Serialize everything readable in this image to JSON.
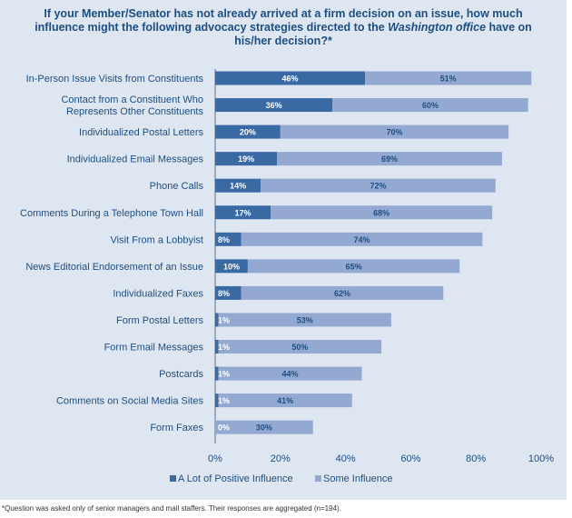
{
  "chart_data": {
    "type": "bar",
    "orientation": "horizontal",
    "stacked": true,
    "title_part1": "If your Member/Senator has not already arrived at a firm decision on an issue, how much influence might the following advocacy strategies directed to the",
    "title_emph": "Washington office",
    "title_part2": "have on his/her decision?*",
    "categories": [
      "In-Person Issue Visits from Constituents",
      "Contact from a Constituent Who Represents Other Constituents",
      "Individualized Postal Letters",
      "Individualized Email Messages",
      "Phone Calls",
      "Comments During a Telephone Town Hall",
      "Visit From a Lobbyist",
      "News Editorial Endorsement of an Issue",
      "Individualized Faxes",
      "Form Postal Letters",
      "Form Email Messages",
      "Postcards",
      "Comments on Social Media Sites",
      "Form Faxes"
    ],
    "category_lines": [
      [
        "In-Person Issue Visits from Constituents"
      ],
      [
        "Contact from a Constituent Who",
        "Represents Other Constituents"
      ],
      [
        "Individualized Postal Letters"
      ],
      [
        "Individualized Email Messages"
      ],
      [
        "Phone Calls"
      ],
      [
        "Comments During a Telephone Town Hall"
      ],
      [
        "Visit From a Lobbyist"
      ],
      [
        "News Editorial Endorsement of an Issue"
      ],
      [
        "Individualized Faxes"
      ],
      [
        "Form Postal Letters"
      ],
      [
        "Form Email Messages"
      ],
      [
        "Postcards"
      ],
      [
        "Comments on Social Media Sites"
      ],
      [
        "Form Faxes"
      ]
    ],
    "series": [
      {
        "name": "A Lot of Positive Influence",
        "color": "#3a6aa3",
        "values": [
          46,
          36,
          20,
          19,
          14,
          17,
          8,
          10,
          8,
          1,
          1,
          1,
          1,
          0
        ]
      },
      {
        "name": "Some Influence",
        "color": "#94a9d1",
        "values": [
          51,
          60,
          70,
          69,
          72,
          68,
          74,
          65,
          62,
          53,
          50,
          44,
          41,
          30
        ]
      }
    ],
    "xlim": [
      0,
      100
    ],
    "xticks": [
      "0%",
      "20%",
      "40%",
      "60%",
      "80%",
      "100%"
    ],
    "xtick_values": [
      0,
      20,
      40,
      60,
      80,
      100
    ],
    "legend_position": "bottom"
  },
  "footnote": "*Question was asked only of senior managers and mail staffers. Their responses are aggregated (n=194)."
}
